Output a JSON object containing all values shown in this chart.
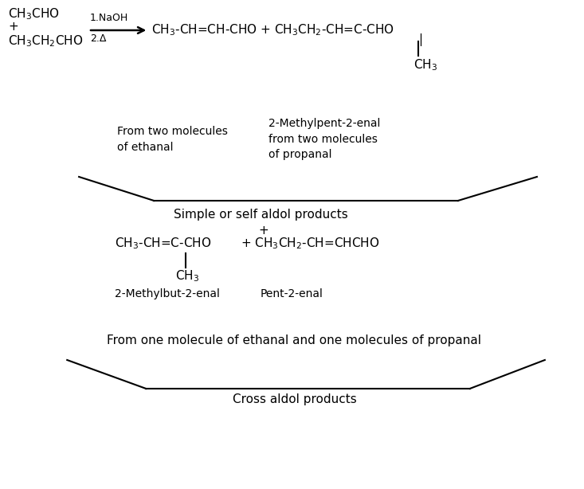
{
  "bg_color": "#ffffff",
  "fs": 11,
  "fs_s": 10,
  "reactants_line1": "CH$_3$CHO",
  "reactants_line2": "+",
  "reactants_line3": "CH$_3$CH$_2$CHO",
  "arrow_label_top": "1.NaOH",
  "arrow_label_bot": "2.Δ",
  "product1": "CH$_3$-CH=CH-CHO + CH$_3$CH$_2$-CH=C-CHO",
  "ch3_pendant": "CH$_3$",
  "label_ethanal": "From two molecules\nof ethanal",
  "label_propanal": "2-Methylpent-2-enal\nfrom two molecules\nof propanal",
  "label_self_aldol": "Simple or self aldol products",
  "plus_sign": "+",
  "product2a": "CH$_3$-CH=C-CHO",
  "product2b": "+ CH$_3$CH$_2$-CH=CHCHO",
  "label_2methyl": "2-Methylbut-2-enal",
  "label_pent": "Pent-2-enal",
  "label_cross_desc": "From one molecule of ethanal and one molecules of propanal",
  "label_cross": "Cross aldol products"
}
